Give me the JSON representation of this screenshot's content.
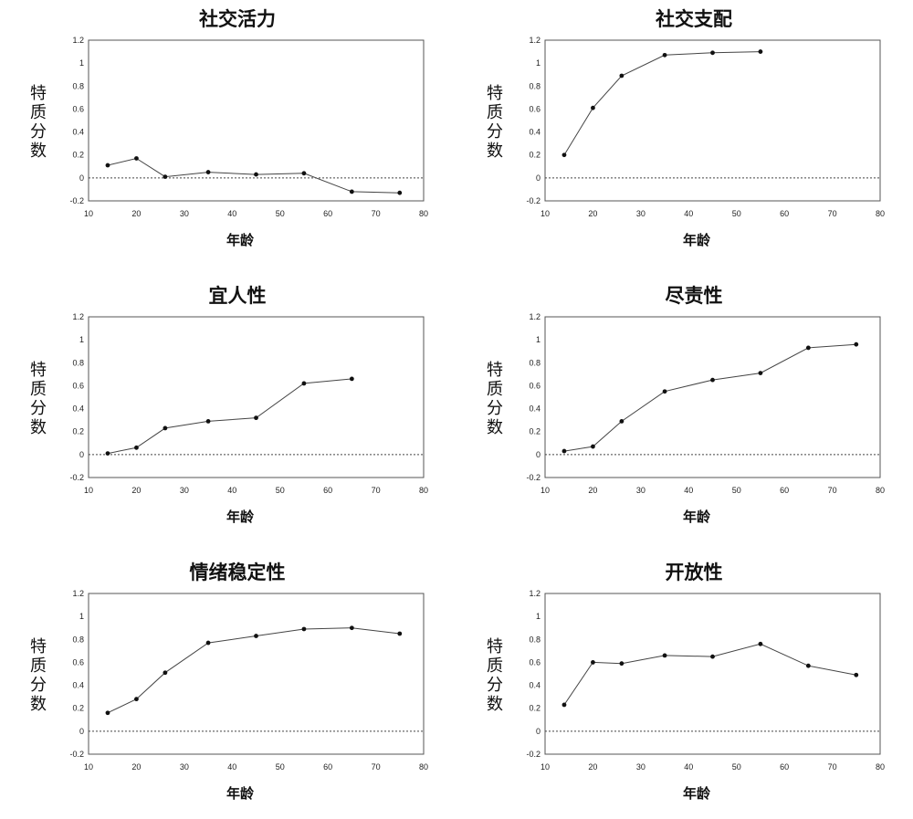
{
  "chart_data": [
    {
      "type": "line",
      "title": "社交活力",
      "ylabel": "特质分数",
      "xlabel": "年龄",
      "xlim": [
        10,
        80
      ],
      "ylim": [
        -0.2,
        1.2
      ],
      "x_ticks": [
        "10",
        "20",
        "30",
        "40",
        "50",
        "60",
        "70",
        "80"
      ],
      "y_ticks": [
        "-0.2",
        "0",
        "0.2",
        "0.4",
        "0.6",
        "0.8",
        "1",
        "1.2"
      ],
      "x": [
        14,
        20,
        26,
        35,
        45,
        55,
        65,
        75
      ],
      "y": [
        0.11,
        0.17,
        0.01,
        0.05,
        0.03,
        0.04,
        -0.12,
        -0.13
      ]
    },
    {
      "type": "line",
      "title": "社交支配",
      "ylabel": "特质分数",
      "xlabel": "年龄",
      "xlim": [
        10,
        80
      ],
      "ylim": [
        -0.2,
        1.2
      ],
      "x_ticks": [
        "10",
        "20",
        "30",
        "40",
        "50",
        "60",
        "70",
        "80"
      ],
      "y_ticks": [
        "-0.2",
        "0",
        "0.2",
        "0.4",
        "0.6",
        "0.8",
        "1",
        "1.2"
      ],
      "x": [
        14,
        20,
        26,
        35,
        45,
        55
      ],
      "y": [
        0.2,
        0.61,
        0.89,
        1.07,
        1.09,
        1.1
      ]
    },
    {
      "type": "line",
      "title": "宜人性",
      "ylabel": "特质分数",
      "xlabel": "年龄",
      "xlim": [
        10,
        80
      ],
      "ylim": [
        -0.2,
        1.2
      ],
      "x_ticks": [
        "10",
        "20",
        "30",
        "40",
        "50",
        "60",
        "70",
        "80"
      ],
      "y_ticks": [
        "-0.2",
        "0",
        "0.2",
        "0.4",
        "0.6",
        "0.8",
        "1",
        "1.2"
      ],
      "x": [
        14,
        20,
        26,
        35,
        45,
        55,
        65
      ],
      "y": [
        0.01,
        0.06,
        0.23,
        0.29,
        0.32,
        0.62,
        0.66
      ]
    },
    {
      "type": "line",
      "title": "尽责性",
      "ylabel": "特质分数",
      "xlabel": "年龄",
      "xlim": [
        10,
        80
      ],
      "ylim": [
        -0.2,
        1.2
      ],
      "x_ticks": [
        "10",
        "20",
        "30",
        "40",
        "50",
        "60",
        "70",
        "80"
      ],
      "y_ticks": [
        "-0.2",
        "0",
        "0.2",
        "0.4",
        "0.6",
        "0.8",
        "1",
        "1.2"
      ],
      "x": [
        14,
        20,
        26,
        35,
        45,
        55,
        65,
        75
      ],
      "y": [
        0.03,
        0.07,
        0.29,
        0.55,
        0.65,
        0.71,
        0.93,
        0.96
      ]
    },
    {
      "type": "line",
      "title": "情绪稳定性",
      "ylabel": "特质分数",
      "xlabel": "年龄",
      "xlim": [
        10,
        80
      ],
      "ylim": [
        -0.2,
        1.2
      ],
      "x_ticks": [
        "10",
        "20",
        "30",
        "40",
        "50",
        "60",
        "70",
        "80"
      ],
      "y_ticks": [
        "-0.2",
        "0",
        "0.2",
        "0.4",
        "0.6",
        "0.8",
        "1",
        "1.2"
      ],
      "x": [
        14,
        20,
        26,
        35,
        45,
        55,
        65,
        75
      ],
      "y": [
        0.16,
        0.28,
        0.51,
        0.77,
        0.83,
        0.89,
        0.9,
        0.85
      ]
    },
    {
      "type": "line",
      "title": "开放性",
      "ylabel": "特质分数",
      "xlabel": "年龄",
      "xlim": [
        10,
        80
      ],
      "ylim": [
        -0.2,
        1.2
      ],
      "x_ticks": [
        "10",
        "20",
        "30",
        "40",
        "50",
        "60",
        "70",
        "80"
      ],
      "y_ticks": [
        "-0.2",
        "0",
        "0.2",
        "0.4",
        "0.6",
        "0.8",
        "1",
        "1.2"
      ],
      "x": [
        14,
        20,
        26,
        35,
        45,
        55,
        65,
        75
      ],
      "y": [
        0.23,
        0.6,
        0.59,
        0.66,
        0.65,
        0.76,
        0.57,
        0.49
      ]
    }
  ]
}
